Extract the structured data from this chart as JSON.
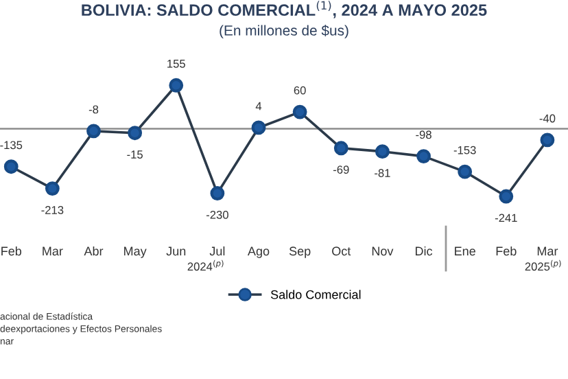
{
  "chart_data": {
    "type": "line",
    "title": "BOLIVIA: SALDO COMERCIAL$^{(1)}$, 2024 A MAYO 2025",
    "subtitle": "(En millones de $us)",
    "categories": [
      "Feb",
      "Mar",
      "Abr",
      "May",
      "Jun",
      "Jul",
      "Ago",
      "Sep",
      "Oct",
      "Nov",
      "Dic",
      "Ene",
      "Feb",
      "Mar"
    ],
    "series": [
      {
        "name": "Saldo Comercial",
        "color": "#1f5aa0",
        "values": [
          -135,
          -213,
          -8,
          -15,
          155,
          -230,
          4,
          60,
          -69,
          -81,
          -98,
          -153,
          -241,
          -40
        ]
      }
    ],
    "data_labels": true,
    "marker": "circle",
    "line_style": "solid",
    "legend": "bottom",
    "grid": false,
    "ref_lines": [
      {
        "axis": "y",
        "value": 0,
        "color": "#8c8c8c"
      }
    ],
    "annotations": [
      "2024$^{(p)}$",
      "2025$^{(p)}$",
      "acional de Estadística",
      "deexportaciones y Efectos Personales",
      "nar"
    ]
  }
}
